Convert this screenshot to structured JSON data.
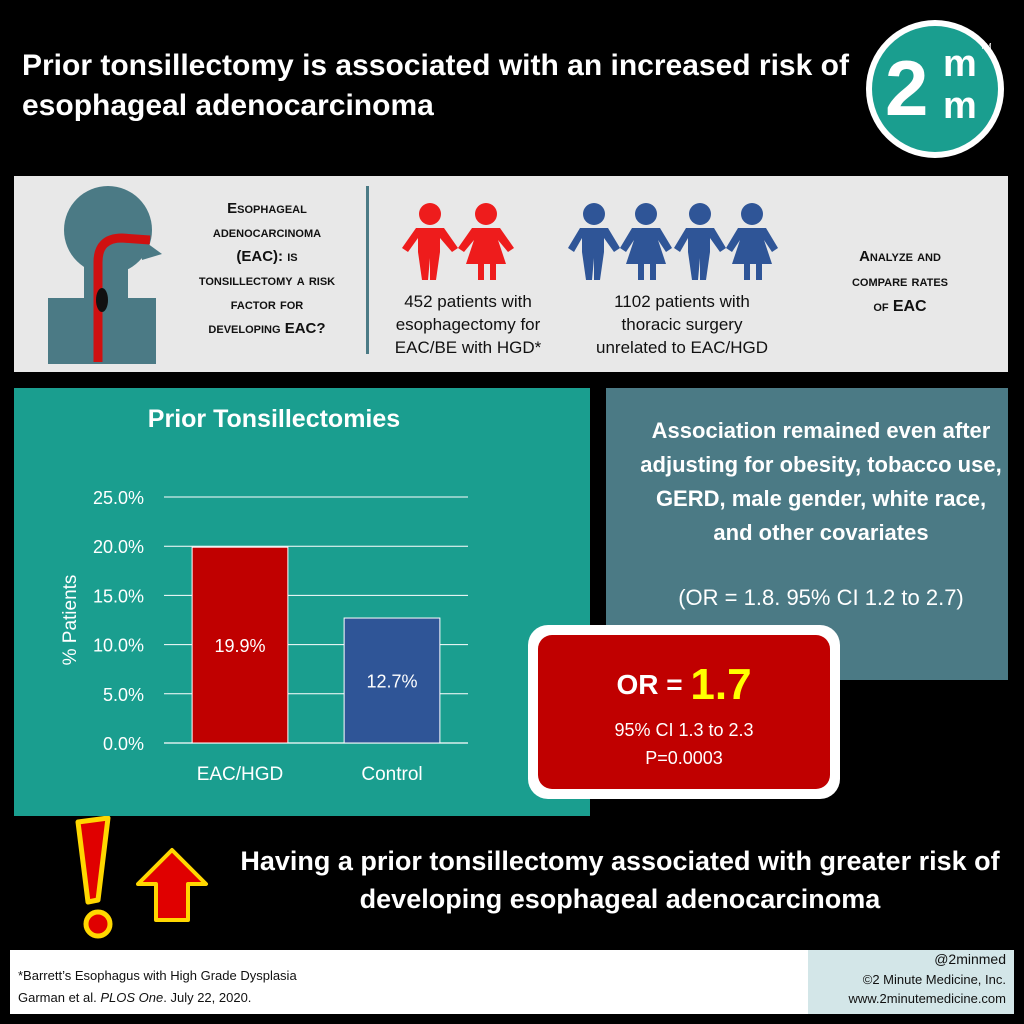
{
  "header": {
    "title": "Prior tonsillectomy is associated with an increased risk of esophageal adenocarcinoma",
    "logo_number": "2",
    "logo_letter_top": "m",
    "logo_letter_bottom": "m",
    "logo_tm": "TM"
  },
  "summary": {
    "question_line1": "Esophageal",
    "question_line2": "adenocarcinoma",
    "question_line3a": "(EAC): ",
    "question_line3b": "is",
    "question_line4": "tonsillectomy a risk",
    "question_line5": "factor for",
    "question_line6a": "developing ",
    "question_line6b": "EAC?",
    "group1_line1": "452 patients with",
    "group1_line2": "esophagectomy for",
    "group1_line3": "EAC/BE with HGD*",
    "group2_line1": "1102 patients with",
    "group2_line2": "thoracic surgery",
    "group2_line3": "unrelated to EAC/HGD",
    "analyze_line1": "Analyze and",
    "analyze_line2": "compare rates",
    "analyze_line3a": "of ",
    "analyze_line3b": "EAC"
  },
  "chart_data": {
    "type": "bar",
    "title": "Prior Tonsillectomies",
    "ylabel": "% Patients",
    "xlabel": "",
    "categories": [
      "EAC/HGD",
      "Control"
    ],
    "values": [
      19.9,
      12.7
    ],
    "value_labels": [
      "19.9%",
      "12.7%"
    ],
    "colors": [
      "#c00000",
      "#2f5597"
    ],
    "ylim": [
      0,
      25
    ],
    "yticks": [
      "0.0%",
      "5.0%",
      "10.0%",
      "15.0%",
      "20.0%",
      "25.0%"
    ],
    "grid": true
  },
  "association": {
    "text": "Association remained even after adjusting for obesity, tobacco use, GERD, male gender, white race, and other covariates",
    "or_text": "(OR = 1.8. 95% CI 1.2 to 2.7)"
  },
  "result": {
    "or_label": "OR = ",
    "or_value": "1.7",
    "ci": "95% CI 1.3 to 2.3",
    "p": "P=0.0003"
  },
  "conclusion": {
    "text": "Having a prior tonsillectomy associated with greater risk of developing esophageal adenocarcinoma"
  },
  "footer": {
    "footnote": "*Barrett’s Esophagus with High Grade Dysplasia",
    "citation_a": "Garman et al. ",
    "citation_journal": "PLOS One",
    "citation_b": ". July 22, 2020.",
    "handle": "@2minmed",
    "copyright": "©2 Minute Medicine, Inc.",
    "website": "www.2minutemedicine.com"
  },
  "colors": {
    "teal": "#1a9e8f",
    "slate": "#4b7a85",
    "red": "#c00000",
    "blue_people": "#2f5597",
    "red_people": "#ee1c1c",
    "or_value": "#ffff00"
  }
}
